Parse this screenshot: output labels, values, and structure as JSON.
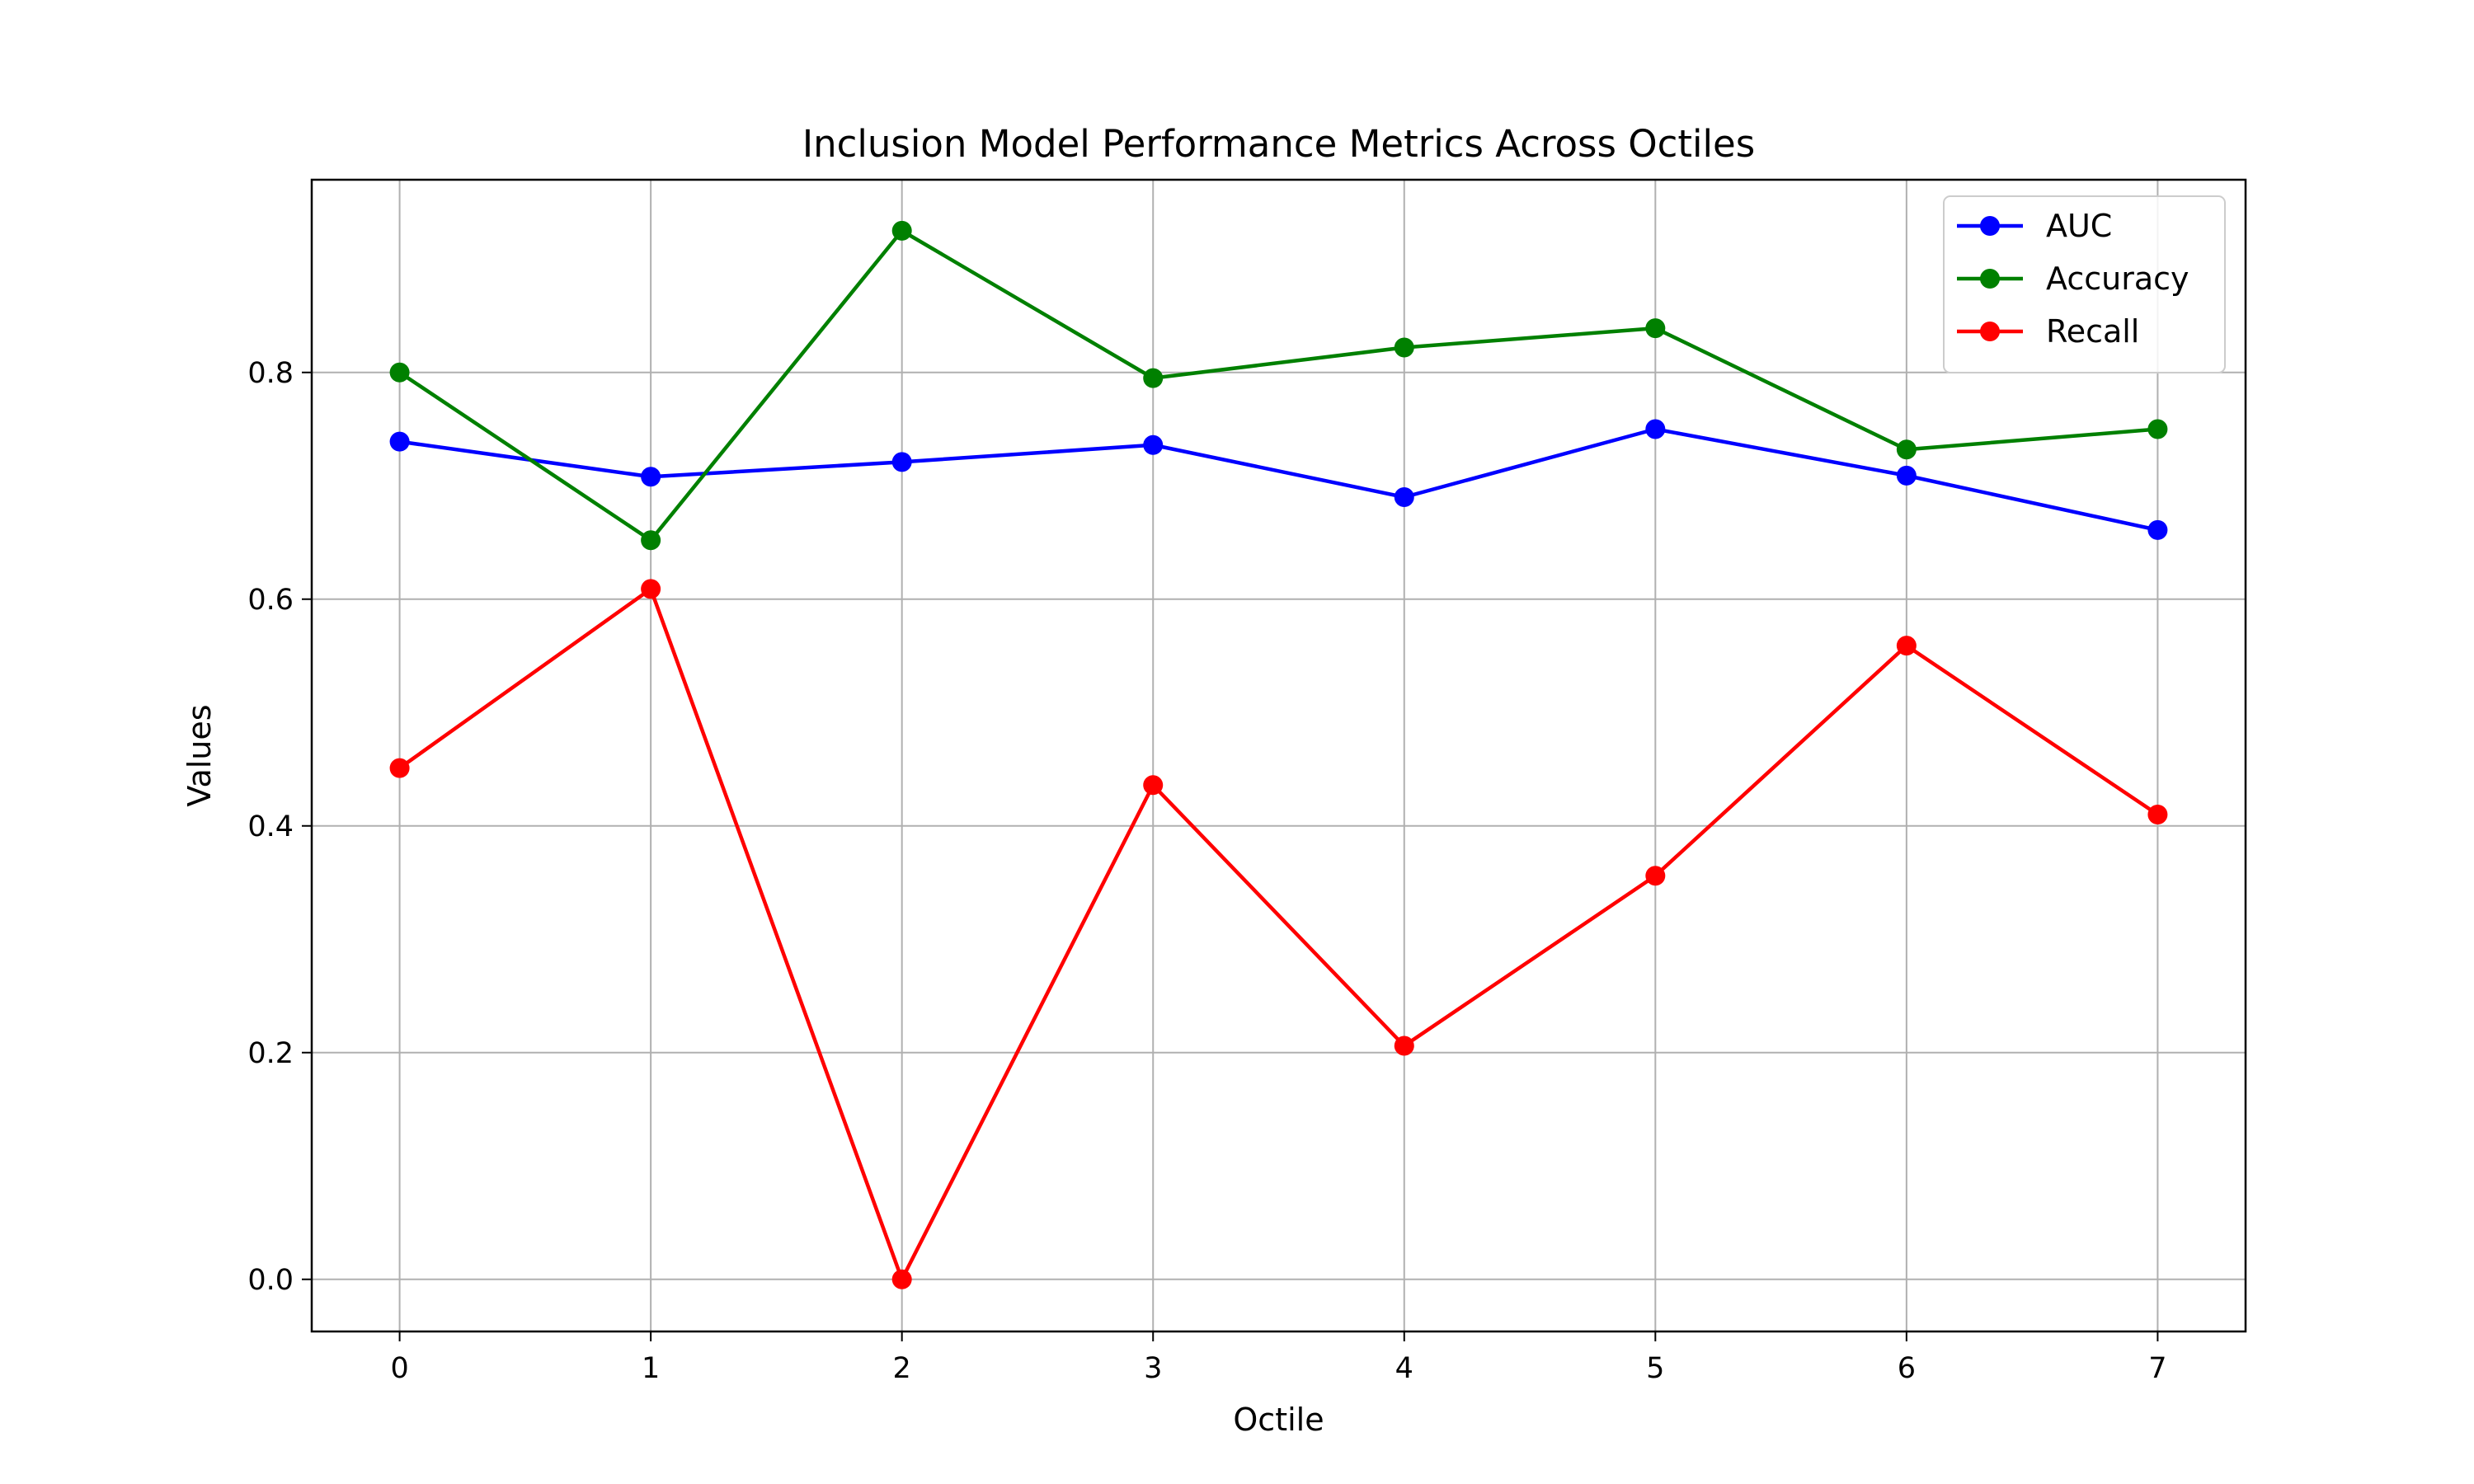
{
  "chart_data": {
    "type": "line",
    "title": "Inclusion Model Performance Metrics Across Octiles",
    "xlabel": "Octile",
    "ylabel": "Values",
    "x": [
      0,
      1,
      2,
      3,
      4,
      5,
      6,
      7
    ],
    "xticks": [
      "0",
      "1",
      "2",
      "3",
      "4",
      "5",
      "6",
      "7"
    ],
    "yticks": [
      "0.0",
      "0.2",
      "0.4",
      "0.6",
      "0.8"
    ],
    "xlim": [
      -0.35,
      7.35
    ],
    "ylim": [
      -0.046,
      0.97
    ],
    "grid": true,
    "legend_position": "top-right",
    "marker": "circle",
    "series": [
      {
        "name": "AUC",
        "color": "#0000ff",
        "values": [
          0.739,
          0.708,
          0.721,
          0.736,
          0.69,
          0.75,
          0.709,
          0.661
        ]
      },
      {
        "name": "Accuracy",
        "color": "#008000",
        "values": [
          0.8,
          0.652,
          0.925,
          0.795,
          0.822,
          0.839,
          0.732,
          0.75
        ]
      },
      {
        "name": "Recall",
        "color": "#ff0000",
        "values": [
          0.451,
          0.609,
          0.0,
          0.436,
          0.206,
          0.356,
          0.559,
          0.41
        ]
      }
    ]
  }
}
